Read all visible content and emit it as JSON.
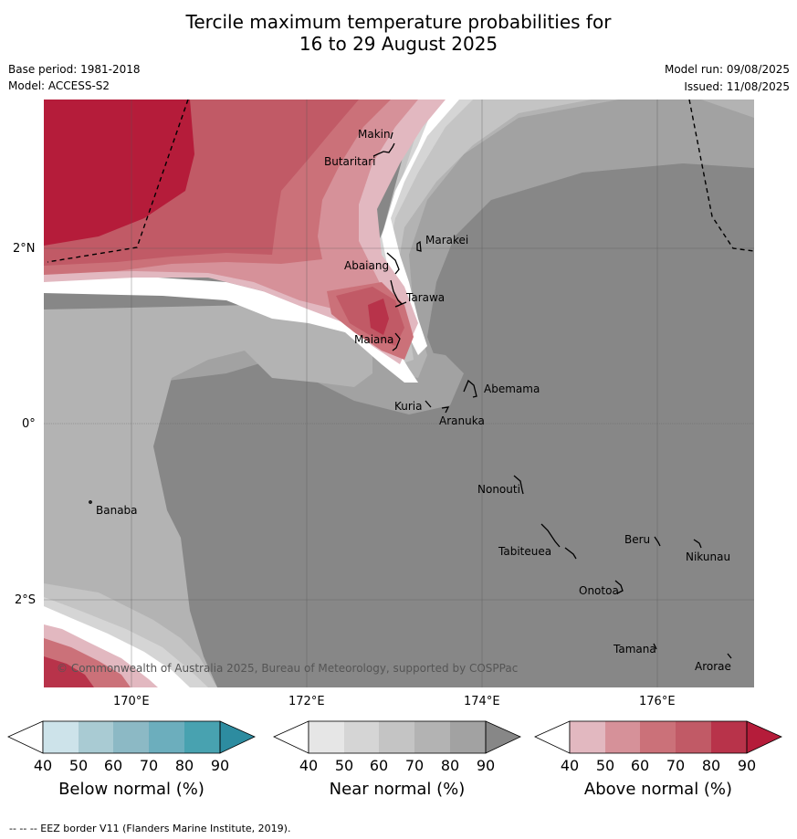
{
  "title": {
    "line1": "Tercile maximum temperature probabilities for",
    "line2": "16 to 29 August 2025"
  },
  "meta": {
    "base_period": "Base period: 1981-2018",
    "model": "Model: ACCESS-S2",
    "model_run": "Model run: 09/08/2025",
    "issued": "Issued: 11/08/2025"
  },
  "map": {
    "x_ticks": [
      "170°E",
      "172°E",
      "174°E",
      "176°E"
    ],
    "y_ticks": [
      "2°N",
      "0°",
      "2°S"
    ],
    "places": {
      "makin": "Makin",
      "butaritari": "Butaritari",
      "marakei": "Marakei",
      "abaiang": "Abaiang",
      "tarawa": "Tarawa",
      "maiana": "Maiana",
      "abemama": "Abemama",
      "kuria": "Kuria",
      "aranuka": "Aranuka",
      "nonouti": "Nonouti",
      "banaba": "Banaba",
      "beru": "Beru",
      "tabiteuea": "Tabiteuea",
      "nikunau": "Nikunau",
      "onotoa": "Onotoa",
      "tamana": "Tamana",
      "arorae": "Arorae"
    },
    "copyright": "© Commonwealth of Australia 2025, Bureau of Meteorology, supported by COSPPac"
  },
  "colorbars": {
    "below": {
      "label": "Below normal (%)",
      "ticks": [
        "40",
        "50",
        "60",
        "70",
        "80",
        "90"
      ],
      "colors": [
        "#ffffff",
        "#cde3ea",
        "#a9cbd3",
        "#8cb9c5",
        "#6caebd",
        "#48a2b0",
        "#2d8ca0"
      ]
    },
    "near": {
      "label": "Near normal (%)",
      "ticks": [
        "40",
        "50",
        "60",
        "70",
        "80",
        "90"
      ],
      "colors": [
        "#ffffff",
        "#e6e6e6",
        "#d5d5d5",
        "#c4c4c4",
        "#b3b3b3",
        "#a2a2a2",
        "#878787"
      ]
    },
    "above": {
      "label": "Above normal (%)",
      "ticks": [
        "40",
        "50",
        "60",
        "70",
        "80",
        "90"
      ],
      "colors": [
        "#ffffff",
        "#e2b8c0",
        "#d69199",
        "#cb7179",
        "#c15a66",
        "#b8334a",
        "#b51c3a"
      ]
    }
  },
  "footer": "--  --  -- EEZ border V11 (Flanders Marine Institute, 2019)."
}
